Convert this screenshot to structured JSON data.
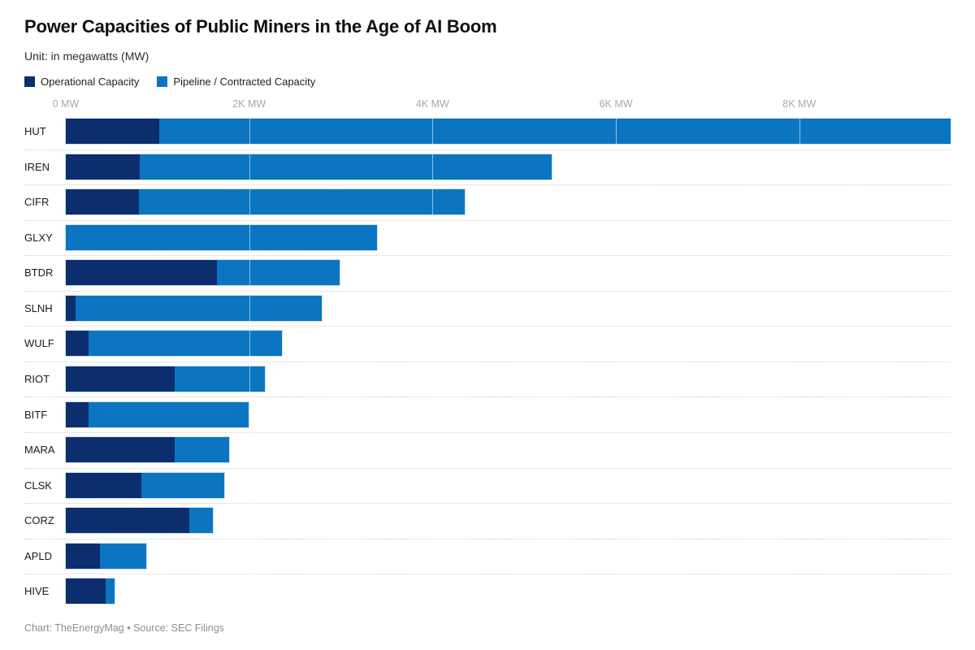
{
  "header": {
    "title": "Power Capacities of Public Miners in the Age of AI Boom",
    "subtitle": "Unit: in megawatts (MW)"
  },
  "legend": [
    {
      "label": "Operational Capacity",
      "color": "#0c2e6e"
    },
    {
      "label": "Pipeline / Contracted Capacity",
      "color": "#0b75c2"
    }
  ],
  "footer": {
    "credit": "Chart: TheEnergyMag • Source: SEC Filings"
  },
  "chart_data": {
    "type": "bar",
    "orientation": "horizontal",
    "stacked": true,
    "title": "Power Capacities of Public Miners in the Age of AI Boom",
    "unit": "MW",
    "legend_position": "top",
    "grid": true,
    "categories": [
      "HUT",
      "IREN",
      "CIFR",
      "GLXY",
      "BTDR",
      "SLNH",
      "WULF",
      "RIOT",
      "BITF",
      "MARA",
      "CLSK",
      "CORZ",
      "APLD",
      "HIVE"
    ],
    "series": [
      {
        "name": "Operational Capacity",
        "color": "#0c2e6e",
        "values": [
          1020,
          810,
          800,
          0,
          1650,
          105,
          245,
          1190,
          250,
          1190,
          825,
          1350,
          370,
          430
        ]
      },
      {
        "name": "Pipeline / Contracted Capacity",
        "color": "#0b75c2",
        "values": [
          8630,
          4490,
          3550,
          3390,
          1340,
          2685,
          2115,
          985,
          1745,
          590,
          905,
          255,
          505,
          100
        ]
      }
    ],
    "totals": [
      9650,
      5300,
      4350,
      3390,
      2990,
      2790,
      2360,
      2175,
      1995,
      1780,
      1730,
      1605,
      875,
      530
    ],
    "x_axis": {
      "max": 9668,
      "ticks": [
        {
          "value": 0,
          "label": "0 MW"
        },
        {
          "value": 2000,
          "label": "2K MW"
        },
        {
          "value": 4000,
          "label": "4K MW"
        },
        {
          "value": 6000,
          "label": "6K MW"
        },
        {
          "value": 8000,
          "label": "8K MW"
        }
      ]
    }
  }
}
